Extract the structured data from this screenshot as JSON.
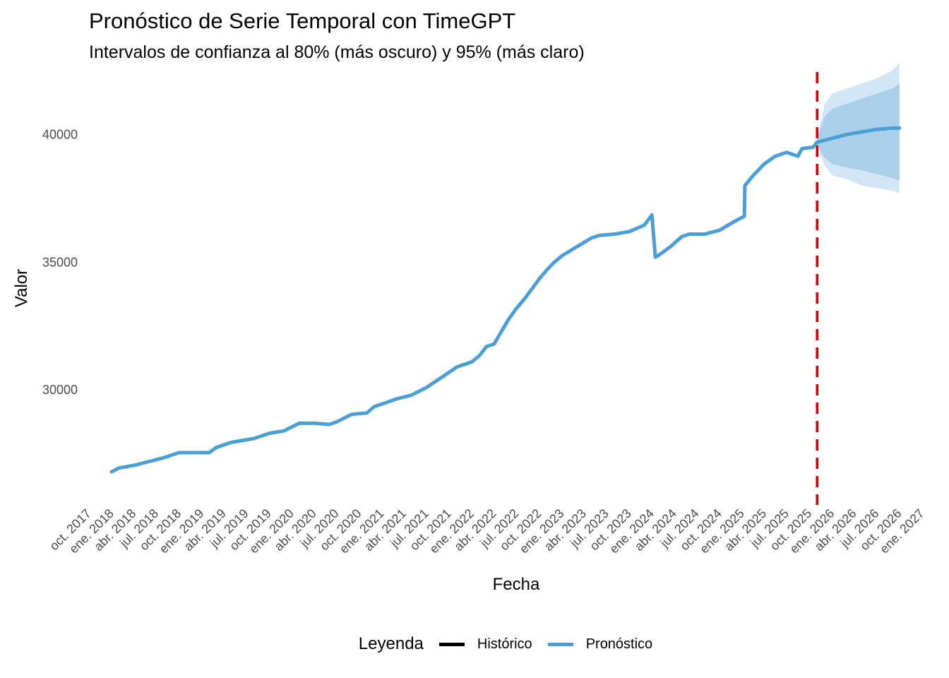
{
  "chart_data": {
    "type": "line",
    "title": "Pronóstico de Serie Temporal con TimeGPT",
    "subtitle": "Intervalos de confianza al 80% (más oscuro) y 95% (más claro)",
    "xlabel": "Fecha",
    "ylabel": "Valor",
    "xlim": [
      "2017-10-01",
      "2027-01-01"
    ],
    "ylim": [
      25500,
      42500
    ],
    "y_ticks": [
      30000,
      35000,
      40000
    ],
    "x_tick_labels": [
      "oct. 2017",
      "ene. 2018",
      "abr. 2018",
      "jul. 2018",
      "oct. 2018",
      "ene. 2019",
      "abr. 2019",
      "jul. 2019",
      "oct. 2019",
      "ene. 2020",
      "abr. 2020",
      "jul. 2020",
      "oct. 2020",
      "ene. 2021",
      "abr. 2021",
      "jul. 2021",
      "oct. 2021",
      "ene. 2022",
      "abr. 2022",
      "jul. 2022",
      "oct. 2022",
      "ene. 2023",
      "abr. 2023",
      "jul. 2023",
      "oct. 2023",
      "ene. 2024",
      "abr. 2024",
      "jul. 2024",
      "oct. 2024",
      "ene. 2025",
      "abr. 2025",
      "jul. 2025",
      "oct. 2025",
      "ene. 2026",
      "abr. 2026",
      "jul. 2026",
      "oct. 2026",
      "ene. 2027"
    ],
    "grid": false,
    "legend": {
      "title": "Leyenda",
      "position": "bottom"
    },
    "series": [
      {
        "name": "Histórico",
        "color": "#000000",
        "x": [],
        "values": []
      },
      {
        "name": "Pronóstico",
        "color": "#4b9fd5",
        "x": [
          "2018-01-01",
          "2018-02-01",
          "2018-04-01",
          "2018-06-01",
          "2018-08-01",
          "2018-10-01",
          "2018-12-01",
          "2019-02-01",
          "2019-03-01",
          "2019-05-01",
          "2019-07-01",
          "2019-08-01",
          "2019-10-01",
          "2019-12-01",
          "2020-01-01",
          "2020-02-01",
          "2020-04-01",
          "2020-06-01",
          "2020-07-01",
          "2020-09-01",
          "2020-11-01",
          "2020-12-01",
          "2021-01-01",
          "2021-03-01",
          "2021-05-01",
          "2021-07-01",
          "2021-09-01",
          "2021-11-01",
          "2022-01-01",
          "2022-02-01",
          "2022-03-01",
          "2022-04-01",
          "2022-05-01",
          "2022-06-01",
          "2022-07-01",
          "2022-08-01",
          "2022-09-01",
          "2022-10-01",
          "2022-11-01",
          "2022-12-01",
          "2023-01-01",
          "2023-03-01",
          "2023-05-01",
          "2023-06-01",
          "2023-08-01",
          "2023-10-01",
          "2023-12-01",
          "2024-01-01",
          "2024-01-15",
          "2024-02-01",
          "2024-03-15",
          "2024-05-01",
          "2024-06-01",
          "2024-08-01",
          "2024-10-01",
          "2024-12-01",
          "2025-01-10",
          "2025-01-12",
          "2025-02-15",
          "2025-04-01",
          "2025-05-15",
          "2025-07-01",
          "2025-08-15",
          "2025-09-01",
          "2025-10-15",
          "2025-11-01",
          "2026-01-01",
          "2026-03-01",
          "2026-05-01",
          "2026-07-01",
          "2026-09-01",
          "2026-10-01"
        ],
        "values": [
          26800,
          26950,
          27050,
          27200,
          27350,
          27550,
          27550,
          27550,
          27750,
          27950,
          28050,
          28100,
          28300,
          28400,
          28550,
          28700,
          28700,
          28650,
          28750,
          29050,
          29100,
          29350,
          29450,
          29650,
          29800,
          30100,
          30500,
          30900,
          31100,
          31350,
          31700,
          31800,
          32300,
          32800,
          33200,
          33550,
          33950,
          34350,
          34700,
          35000,
          35250,
          35600,
          35950,
          36050,
          36100,
          36200,
          36450,
          36850,
          35200,
          35300,
          35600,
          36000,
          36100,
          36100,
          36250,
          36600,
          36800,
          38000,
          38400,
          38850,
          39150,
          39300,
          39150,
          39450,
          39500,
          39700,
          39850,
          40000,
          40100,
          40200,
          40250,
          40250
        ]
      }
    ],
    "forecast_start": "2025-11-01",
    "interval_80": {
      "x": [
        "2025-11-01",
        "2025-12-01",
        "2026-01-01",
        "2026-03-01",
        "2026-05-01",
        "2026-07-01",
        "2026-09-01",
        "2026-10-01"
      ],
      "lower": [
        39600,
        39100,
        38850,
        38700,
        38600,
        38450,
        38300,
        38200
      ],
      "upper": [
        39800,
        40700,
        41000,
        41200,
        41400,
        41600,
        41800,
        42000
      ]
    },
    "interval_95": {
      "x": [
        "2025-11-01",
        "2025-12-01",
        "2026-01-01",
        "2026-03-01",
        "2026-05-01",
        "2026-07-01",
        "2026-09-01",
        "2026-10-01"
      ],
      "lower": [
        39500,
        38800,
        38400,
        38250,
        38000,
        37900,
        37800,
        37700
      ],
      "upper": [
        39900,
        41200,
        41600,
        41800,
        42000,
        42200,
        42500,
        42800
      ]
    },
    "colors": {
      "line": "#4b9fd5",
      "band80": "#a9cfea",
      "band95": "#d3e6f5",
      "vline": "#dd0000",
      "historic": "#000000"
    }
  }
}
